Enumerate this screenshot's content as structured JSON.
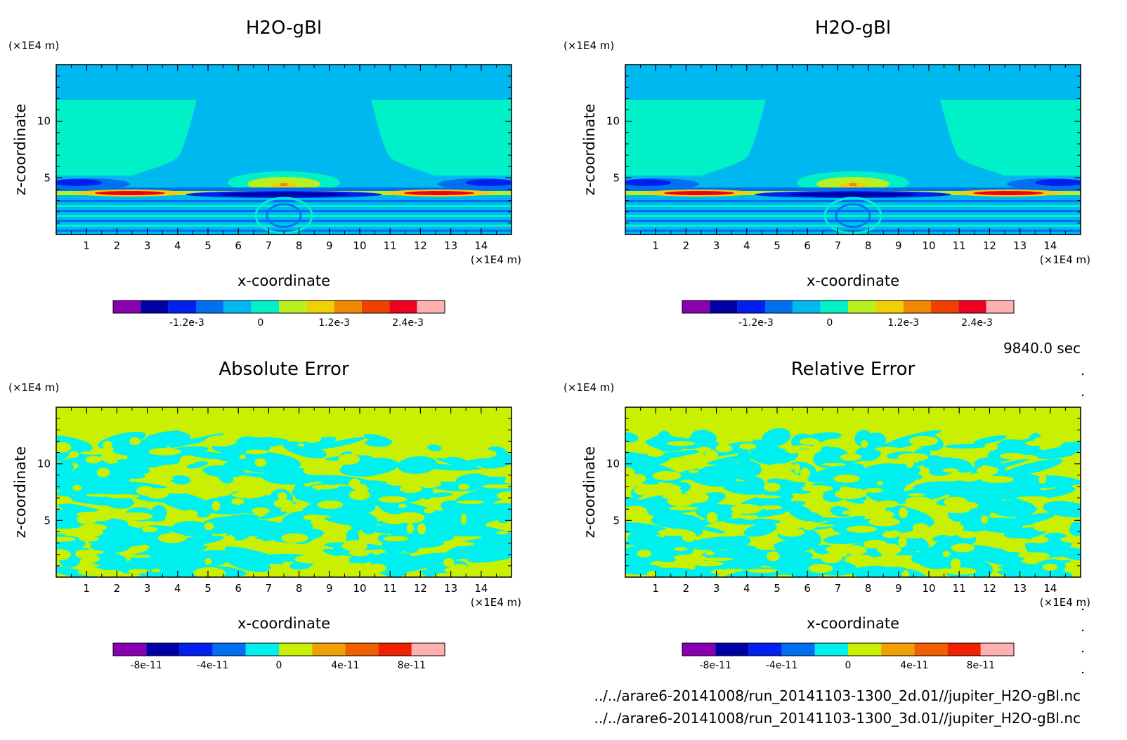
{
  "chart_data": [
    {
      "type": "heatmap",
      "title": "H2O-gBl",
      "xlabel": "x-coordinate",
      "ylabel": "z-coordinate",
      "x_unit": "(×1E4 m)",
      "y_unit": "(×1E4 m)",
      "xlim": [
        0,
        15
      ],
      "ylim": [
        0,
        15
      ],
      "x_ticks": [
        1,
        2,
        3,
        4,
        5,
        6,
        7,
        8,
        9,
        10,
        11,
        12,
        13,
        14
      ],
      "y_ticks": [
        5,
        10
      ],
      "colorbar": {
        "colors": [
          "#8800b0",
          "#0000a8",
          "#0020f0",
          "#0070f0",
          "#00b8f0",
          "#00f0c8",
          "#b8f020",
          "#f0d000",
          "#f08800",
          "#f04000",
          "#f00020",
          "#ffb0b0"
        ],
        "labels": [
          "-1.2e-3",
          "0",
          "1.2e-3",
          "2.4e-3"
        ],
        "label_values": [
          -0.0012,
          0,
          0.0012,
          0.0024
        ],
        "range": [
          -0.0024,
          0.003
        ]
      }
    },
    {
      "type": "heatmap",
      "title": "H2O-gBl",
      "xlabel": "x-coordinate",
      "ylabel": "z-coordinate",
      "x_unit": "(×1E4 m)",
      "y_unit": "(×1E4 m)",
      "xlim": [
        0,
        15
      ],
      "ylim": [
        0,
        15
      ],
      "x_ticks": [
        1,
        2,
        3,
        4,
        5,
        6,
        7,
        8,
        9,
        10,
        11,
        12,
        13,
        14
      ],
      "y_ticks": [
        5,
        10
      ],
      "colorbar": {
        "colors": [
          "#8800b0",
          "#0000a8",
          "#0020f0",
          "#0070f0",
          "#00b8f0",
          "#00f0c8",
          "#b8f020",
          "#f0d000",
          "#f08800",
          "#f04000",
          "#f00020",
          "#ffb0b0"
        ],
        "labels": [
          "-1.2e-3",
          "0",
          "1.2e-3",
          "2.4e-3"
        ],
        "label_values": [
          -0.0012,
          0,
          0.0012,
          0.0024
        ],
        "range": [
          -0.0024,
          0.003
        ]
      }
    },
    {
      "type": "heatmap",
      "title": "Absolute Error",
      "xlabel": "x-coordinate",
      "ylabel": "z-coordinate",
      "x_unit": "(×1E4 m)",
      "y_unit": "(×1E4 m)",
      "xlim": [
        0,
        15
      ],
      "ylim": [
        0,
        15
      ],
      "x_ticks": [
        1,
        2,
        3,
        4,
        5,
        6,
        7,
        8,
        9,
        10,
        11,
        12,
        13,
        14
      ],
      "y_ticks": [
        5,
        10
      ],
      "colorbar": {
        "colors": [
          "#8800b0",
          "#0000a8",
          "#0020f0",
          "#0070f0",
          "#00f0f0",
          "#c8f000",
          "#f0a000",
          "#f06000",
          "#f02000",
          "#ffb0b0"
        ],
        "labels": [
          "-8e-11",
          "-4e-11",
          "0",
          "4e-11",
          "8e-11"
        ],
        "label_values": [
          -8e-11,
          -4e-11,
          0,
          4e-11,
          8e-11
        ],
        "range": [
          -1e-10,
          1e-10
        ]
      }
    },
    {
      "type": "heatmap",
      "title": "Relative Error",
      "xlabel": "x-coordinate",
      "ylabel": "z-coordinate",
      "x_unit": "(×1E4 m)",
      "y_unit": "(×1E4 m)",
      "xlim": [
        0,
        15
      ],
      "ylim": [
        0,
        15
      ],
      "x_ticks": [
        1,
        2,
        3,
        4,
        5,
        6,
        7,
        8,
        9,
        10,
        11,
        12,
        13,
        14
      ],
      "y_ticks": [
        5,
        10
      ],
      "colorbar": {
        "colors": [
          "#8800b0",
          "#0000a8",
          "#0020f0",
          "#0070f0",
          "#00f0f0",
          "#c8f000",
          "#f0a000",
          "#f06000",
          "#f02000",
          "#ffb0b0"
        ],
        "labels": [
          "-8e-11",
          "-4e-11",
          "0",
          "4e-11",
          "8e-11"
        ],
        "label_values": [
          -8e-11,
          -4e-11,
          0,
          4e-11,
          8e-11
        ],
        "range": [
          -1e-10,
          1e-10
        ]
      }
    }
  ],
  "info": {
    "time": "9840.0 sec",
    "file1": "../../arare6-20141008/run_20141103-1300_2d.01//jupiter_H2O-gBl.nc",
    "file2": "../../arare6-20141008/run_20141103-1300_3d.01//jupiter_H2O-gBl.nc"
  }
}
